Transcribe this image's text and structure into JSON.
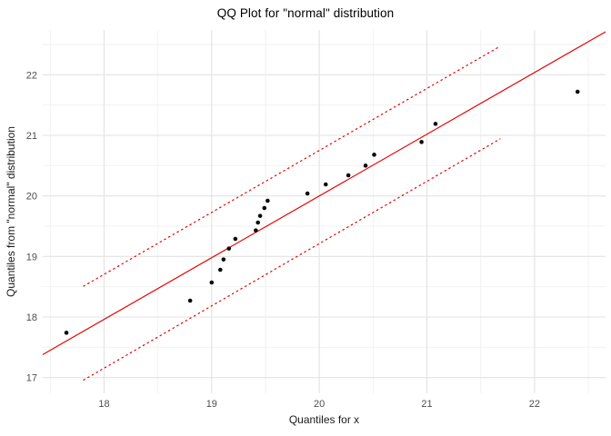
{
  "chart_data": {
    "type": "scatter",
    "title": "QQ Plot for \"normal\" distribution",
    "xlabel": "Quantiles for x",
    "ylabel": "Quantiles from \"normal\" distribution",
    "xlim": [
      17.43,
      22.66
    ],
    "ylim": [
      16.74,
      22.74
    ],
    "x_ticks": [
      18,
      19,
      20,
      21,
      22
    ],
    "y_ticks": [
      17,
      18,
      19,
      20,
      21,
      22
    ],
    "x_minor_ticks": [
      17.5,
      18.5,
      19.5,
      20.5,
      21.5,
      22.5
    ],
    "y_minor_ticks": [
      17.5,
      18.5,
      19.5,
      20.5,
      21.5,
      22.5
    ],
    "grid": true,
    "legend": false,
    "points": [
      [
        17.65,
        17.74
      ],
      [
        18.8,
        18.27
      ],
      [
        19.0,
        18.57
      ],
      [
        19.08,
        18.78
      ],
      [
        19.11,
        18.95
      ],
      [
        19.16,
        19.13
      ],
      [
        19.22,
        19.29
      ],
      [
        19.41,
        19.43
      ],
      [
        19.43,
        19.56
      ],
      [
        19.45,
        19.67
      ],
      [
        19.49,
        19.8
      ],
      [
        19.52,
        19.92
      ],
      [
        19.89,
        20.04
      ],
      [
        20.06,
        20.19
      ],
      [
        20.27,
        20.34
      ],
      [
        20.43,
        20.5
      ],
      [
        20.51,
        20.68
      ],
      [
        20.95,
        20.89
      ],
      [
        21.08,
        21.19
      ],
      [
        22.4,
        21.72
      ]
    ],
    "reference_line": {
      "style": "solid",
      "x1": 17.43,
      "y1": 17.38,
      "x2": 22.66,
      "y2": 22.71
    },
    "confidence_band": {
      "style": "dotted",
      "upper": {
        "x1": 17.81,
        "y1": 18.51,
        "x2": 21.66,
        "y2": 22.45
      },
      "lower": {
        "x1": 17.81,
        "y1": 16.96,
        "x2": 21.68,
        "y2": 20.94
      }
    },
    "colors": {
      "point": "#0a0a0a",
      "line": "#e60000",
      "grid_major": "#e3e3e3",
      "grid_minor": "#f0f0f0",
      "tick_label": "#4d4d4d",
      "axis_label": "#1a1a1a",
      "title": "#000000",
      "background": "#ffffff"
    }
  }
}
